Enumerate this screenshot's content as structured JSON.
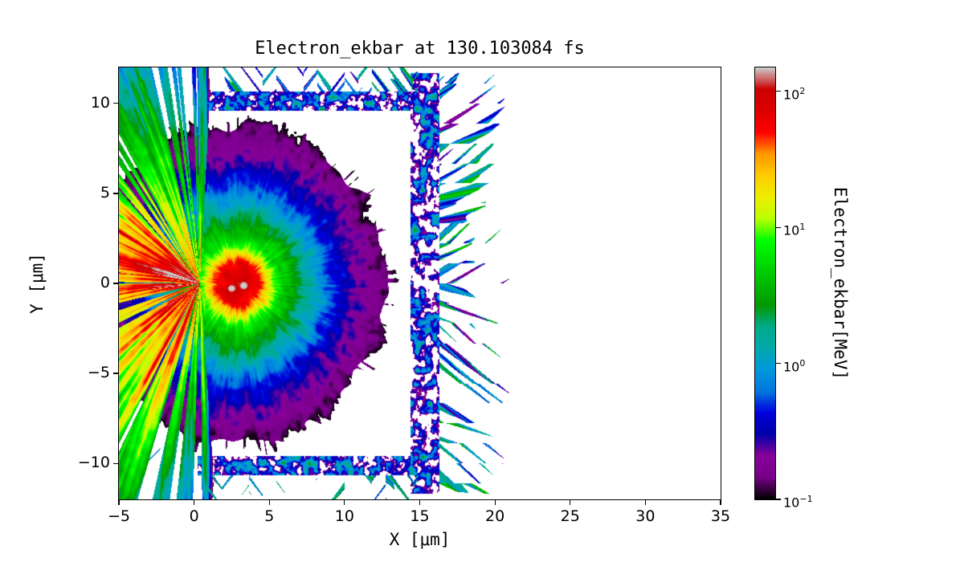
{
  "chart_data": {
    "type": "heatmap",
    "title": "Electron_ekbar at 130.103084 fs",
    "xlabel": "X [μm]",
    "ylabel": "Y [μm]",
    "xlim": [
      -5,
      35
    ],
    "ylim": [
      -12,
      12
    ],
    "x_ticks": [
      -5,
      0,
      5,
      10,
      15,
      20,
      25,
      30,
      35
    ],
    "y_ticks": [
      -10,
      -5,
      0,
      5,
      10
    ],
    "grid": false,
    "colorbar": {
      "label": "Electron_ekbar[MeV]",
      "scale": "log10",
      "vmin": 0.1,
      "vmax": 150,
      "tick_exponents": [
        -1,
        0,
        1,
        2
      ],
      "colormap": "nipy_spectral"
    },
    "features": {
      "description": "Electron mean kinetic energy map from a laser-target PIC simulation at t = 130.103084 fs",
      "hot_core": {
        "x_um": 2.9,
        "y_um": 0.0,
        "peak_MeV": 150
      },
      "halo": {
        "center_x_um": 2.9,
        "center_y_um": 0.0,
        "radius_um": 10,
        "y_squash": 1.15
      },
      "front_spray": {
        "origin_x_um": 0.4,
        "max_extent_um": 14,
        "peak_MeV": 100
      },
      "target_walls": {
        "y_um": [
          -10.1,
          10.1
        ],
        "x_range_um": [
          0.25,
          14.85
        ]
      },
      "rear_spray": {
        "x_um": 15.35,
        "streak_reach_x_um": 21
      }
    }
  }
}
